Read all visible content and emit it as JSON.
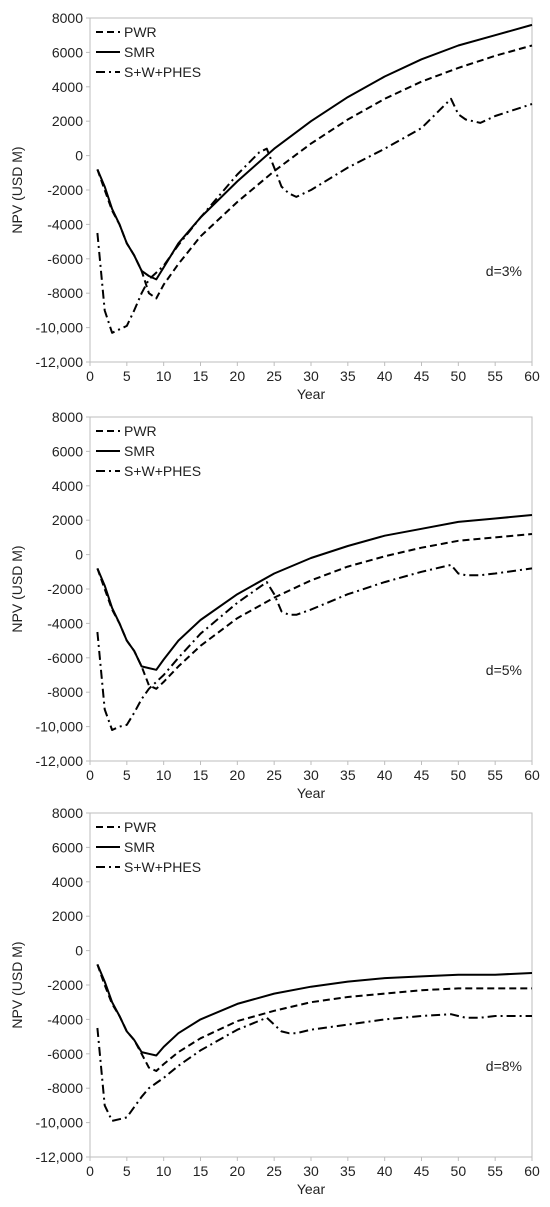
{
  "chart_data": [
    {
      "type": "line",
      "xlabel": "Year",
      "ylabel": "NPV (USD M)",
      "xlim": [
        0,
        60
      ],
      "ylim": [
        -12000,
        8000
      ],
      "xticks": [
        0,
        5,
        10,
        15,
        20,
        25,
        30,
        35,
        40,
        45,
        50,
        55,
        60
      ],
      "yticks": [
        -12000,
        -10000,
        -8000,
        -6000,
        -4000,
        -2000,
        0,
        2000,
        4000,
        6000,
        8000
      ],
      "ytick_labels": [
        "-12,000",
        "-10,000",
        "-8000",
        "-6000",
        "-4000",
        "-2000",
        "0",
        "2000",
        "4000",
        "6000",
        "8000"
      ],
      "annotation": "d=3%",
      "legend_position": "top-left",
      "grid": false,
      "series": [
        {
          "name": "PWR",
          "style": "dashed",
          "x": [
            1,
            2,
            3,
            4,
            5,
            6,
            7,
            8,
            9,
            10,
            12,
            15,
            20,
            25,
            30,
            35,
            40,
            45,
            50,
            55,
            60
          ],
          "y": [
            -800,
            -2000,
            -3200,
            -4000,
            -5100,
            -5800,
            -6700,
            -8000,
            -8300,
            -7500,
            -6300,
            -4700,
            -2700,
            -900,
            700,
            2100,
            3300,
            4300,
            5100,
            5800,
            6400
          ]
        },
        {
          "name": "SMR",
          "style": "solid",
          "x": [
            1,
            2,
            3,
            4,
            5,
            6,
            7,
            8,
            9,
            10,
            12,
            15,
            20,
            25,
            30,
            35,
            40,
            45,
            50,
            55,
            60
          ],
          "y": [
            -800,
            -1800,
            -3100,
            -4000,
            -5100,
            -5800,
            -6700,
            -7000,
            -7200,
            -6500,
            -5100,
            -3600,
            -1500,
            400,
            2000,
            3400,
            4600,
            5600,
            6400,
            7000,
            7600
          ]
        },
        {
          "name": "S+W+PHES",
          "style": "dashdot",
          "x": [
            1,
            2,
            3,
            4,
            5,
            6,
            7,
            8,
            9,
            10,
            12,
            15,
            20,
            23,
            24,
            25,
            26,
            27,
            28,
            30,
            35,
            40,
            45,
            49,
            50,
            51,
            53,
            55,
            60
          ],
          "y": [
            -4500,
            -9000,
            -10300,
            -10100,
            -9900,
            -9000,
            -8000,
            -7200,
            -6800,
            -6400,
            -5200,
            -3600,
            -1100,
            200,
            400,
            -700,
            -1800,
            -2200,
            -2400,
            -2000,
            -700,
            400,
            1600,
            3300,
            2400,
            2100,
            1900,
            2300,
            3000
          ]
        }
      ]
    },
    {
      "type": "line",
      "xlabel": "Year",
      "ylabel": "NPV (USD M)",
      "xlim": [
        0,
        60
      ],
      "ylim": [
        -12000,
        8000
      ],
      "xticks": [
        0,
        5,
        10,
        15,
        20,
        25,
        30,
        35,
        40,
        45,
        50,
        55,
        60
      ],
      "yticks": [
        -12000,
        -10000,
        -8000,
        -6000,
        -4000,
        -2000,
        0,
        2000,
        4000,
        6000,
        8000
      ],
      "ytick_labels": [
        "-12,000",
        "-10,000",
        "-8000",
        "-6000",
        "-4000",
        "-2000",
        "0",
        "2000",
        "4000",
        "6000",
        "8000"
      ],
      "annotation": "d=5%",
      "legend_position": "top-left",
      "grid": false,
      "series": [
        {
          "name": "PWR",
          "style": "dashed",
          "x": [
            1,
            2,
            3,
            4,
            5,
            6,
            7,
            8,
            9,
            10,
            12,
            15,
            20,
            25,
            30,
            35,
            40,
            45,
            50,
            55,
            60
          ],
          "y": [
            -800,
            -2000,
            -3200,
            -4000,
            -5000,
            -5600,
            -6500,
            -7600,
            -7800,
            -7400,
            -6500,
            -5300,
            -3700,
            -2500,
            -1500,
            -700,
            -100,
            400,
            800,
            1000,
            1200
          ]
        },
        {
          "name": "SMR",
          "style": "solid",
          "x": [
            1,
            2,
            3,
            4,
            5,
            6,
            7,
            8,
            9,
            10,
            12,
            15,
            20,
            25,
            30,
            35,
            40,
            45,
            50,
            55,
            60
          ],
          "y": [
            -800,
            -1800,
            -3100,
            -4000,
            -5000,
            -5600,
            -6500,
            -6600,
            -6700,
            -6100,
            -5000,
            -3800,
            -2300,
            -1100,
            -200,
            500,
            1100,
            1500,
            1900,
            2100,
            2300
          ]
        },
        {
          "name": "S+W+PHES",
          "style": "dashdot",
          "x": [
            1,
            2,
            3,
            4,
            5,
            6,
            7,
            8,
            9,
            10,
            12,
            15,
            20,
            24,
            25,
            26,
            27,
            28,
            30,
            35,
            40,
            45,
            49,
            50,
            51,
            53,
            55,
            60
          ],
          "y": [
            -4500,
            -9000,
            -10200,
            -10000,
            -9900,
            -9200,
            -8400,
            -7800,
            -7400,
            -7000,
            -6000,
            -4600,
            -2800,
            -1600,
            -2300,
            -3300,
            -3500,
            -3500,
            -3200,
            -2300,
            -1600,
            -1000,
            -600,
            -1100,
            -1200,
            -1200,
            -1100,
            -800
          ]
        }
      ]
    },
    {
      "type": "line",
      "xlabel": "Year",
      "ylabel": "NPV (USD M)",
      "xlim": [
        0,
        60
      ],
      "ylim": [
        -12000,
        8000
      ],
      "xticks": [
        0,
        5,
        10,
        15,
        20,
        25,
        30,
        35,
        40,
        45,
        50,
        55,
        60
      ],
      "yticks": [
        -12000,
        -10000,
        -8000,
        -6000,
        -4000,
        -2000,
        0,
        2000,
        4000,
        6000,
        8000
      ],
      "ytick_labels": [
        "-12,000",
        "-10,000",
        "-8000",
        "-6000",
        "-4000",
        "-2000",
        "0",
        "2000",
        "4000",
        "6000",
        "8000"
      ],
      "annotation": "d=8%",
      "legend_position": "top-left",
      "grid": false,
      "series": [
        {
          "name": "PWR",
          "style": "dashed",
          "x": [
            1,
            2,
            3,
            4,
            5,
            6,
            7,
            8,
            9,
            10,
            12,
            15,
            20,
            25,
            30,
            35,
            40,
            45,
            50,
            55,
            60
          ],
          "y": [
            -800,
            -2000,
            -3100,
            -3800,
            -4700,
            -5200,
            -6000,
            -6800,
            -7000,
            -6600,
            -5900,
            -5100,
            -4100,
            -3500,
            -3000,
            -2700,
            -2500,
            -2300,
            -2200,
            -2200,
            -2200
          ]
        },
        {
          "name": "SMR",
          "style": "solid",
          "x": [
            1,
            2,
            3,
            4,
            5,
            6,
            7,
            8,
            9,
            10,
            12,
            15,
            20,
            25,
            30,
            35,
            40,
            45,
            50,
            55,
            60
          ],
          "y": [
            -800,
            -1800,
            -3000,
            -3800,
            -4700,
            -5200,
            -5900,
            -6000,
            -6100,
            -5600,
            -4800,
            -4000,
            -3100,
            -2500,
            -2100,
            -1800,
            -1600,
            -1500,
            -1400,
            -1400,
            -1300
          ]
        },
        {
          "name": "S+W+PHES",
          "style": "dashdot",
          "x": [
            1,
            2,
            3,
            4,
            5,
            6,
            7,
            8,
            9,
            10,
            12,
            15,
            20,
            24,
            25,
            26,
            27,
            28,
            30,
            35,
            40,
            45,
            49,
            50,
            51,
            53,
            55,
            60
          ],
          "y": [
            -4500,
            -9000,
            -9900,
            -9800,
            -9700,
            -9100,
            -8500,
            -8000,
            -7700,
            -7400,
            -6700,
            -5800,
            -4600,
            -3900,
            -4300,
            -4700,
            -4800,
            -4800,
            -4600,
            -4300,
            -4000,
            -3800,
            -3700,
            -3800,
            -3900,
            -3900,
            -3800,
            -3800
          ]
        }
      ]
    }
  ]
}
